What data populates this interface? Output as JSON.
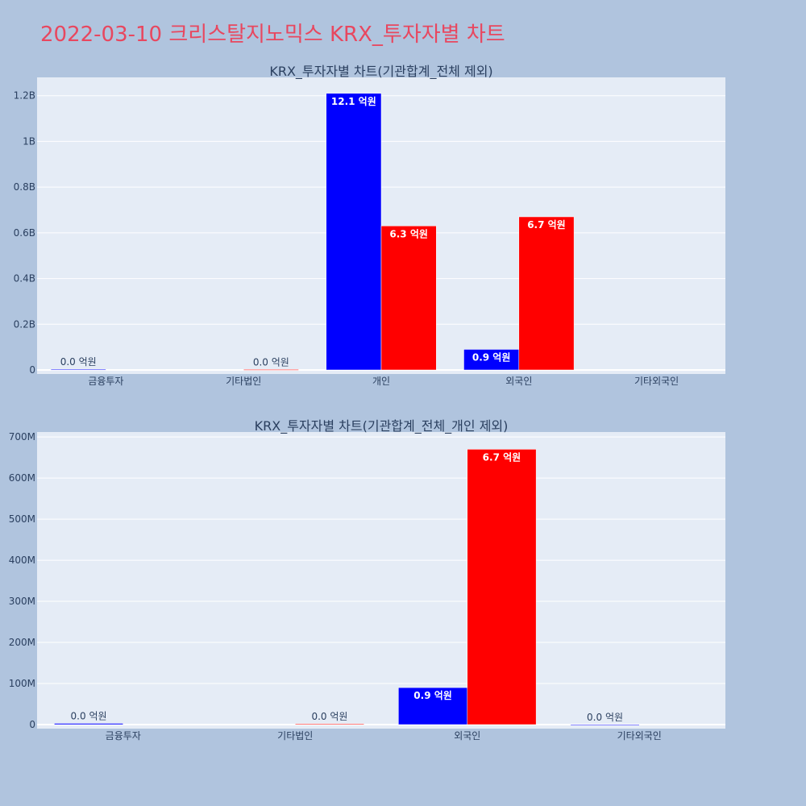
{
  "page_title": "2022-03-10 크리스탈지노믹스 KRX_투자자별 차트",
  "colors": {
    "background": "#b0c4de",
    "plot_background": "#e5ecf6",
    "title": "#e8475f",
    "series_a": "#0000ff",
    "series_b": "#ff0000"
  },
  "chart_data": [
    {
      "type": "bar",
      "title": "KRX_투자자별 차트(기관합계_전체 제외)",
      "categories": [
        "금융투자",
        "기타법인",
        "개인",
        "외국인",
        "기타외국인"
      ],
      "ylim": [
        0,
        1280000000
      ],
      "yticks": [
        0,
        200000000,
        400000000,
        600000000,
        800000000,
        1000000000,
        1200000000
      ],
      "ytick_labels": [
        "0",
        "0.2B",
        "0.4B",
        "0.6B",
        "0.8B",
        "1B",
        "1.2B"
      ],
      "grid": true,
      "legend": "none",
      "series": [
        {
          "color": "#0000ff",
          "values": [
            3000000,
            null,
            1210000000,
            90000000,
            null
          ],
          "labels": [
            "0.0 억원",
            "",
            "12.1 억원",
            "0.9 억원",
            ""
          ]
        },
        {
          "color": "#ff0000",
          "values": [
            null,
            2000000,
            630000000,
            670000000,
            null
          ],
          "labels": [
            "",
            "0.0 억원",
            "6.3 억원",
            "6.7 억원",
            ""
          ]
        }
      ]
    },
    {
      "type": "bar",
      "title": "KRX_투자자별 차트(기관합계_전체_개인 제외)",
      "categories": [
        "금융투자",
        "기타법인",
        "외국인",
        "기타외국인"
      ],
      "ylim": [
        0,
        712000000
      ],
      "yticks": [
        0,
        100000000,
        200000000,
        300000000,
        400000000,
        500000000,
        600000000,
        700000000
      ],
      "ytick_labels": [
        "0",
        "100M",
        "200M",
        "300M",
        "400M",
        "500M",
        "600M",
        "700M"
      ],
      "grid": true,
      "legend": "none",
      "series": [
        {
          "color": "#0000ff",
          "values": [
            3000000,
            null,
            90000000,
            0
          ],
          "labels": [
            "0.0 억원",
            "",
            "0.9 억원",
            "0.0 억원"
          ]
        },
        {
          "color": "#ff0000",
          "values": [
            null,
            2000000,
            670000000,
            null
          ],
          "labels": [
            "",
            "0.0 억원",
            "6.7 억원",
            ""
          ]
        }
      ]
    }
  ]
}
